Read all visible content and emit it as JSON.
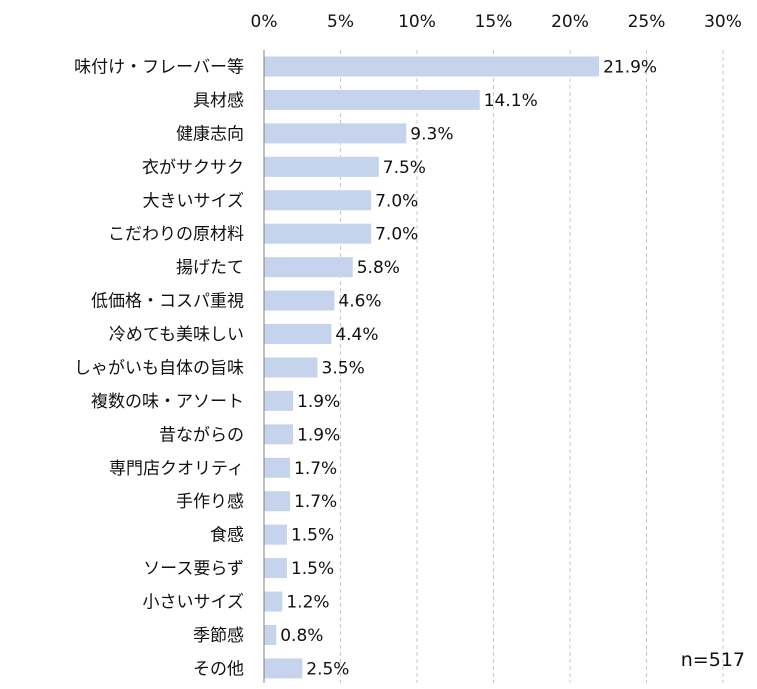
{
  "chart_data": {
    "type": "bar",
    "orientation": "horizontal",
    "categories": [
      "味付け・フレーバー等",
      "具材感",
      "健康志向",
      "衣がサクサク",
      "大きいサイズ",
      "こだわりの原材料",
      "揚げたて",
      "低価格・コスパ重視",
      "冷めても美味しい",
      "しゃがいも自体の旨味",
      "複数の味・アソート",
      "昔ながらの",
      "専門店クオリティ",
      "手作り感",
      "食感",
      "ソース要らず",
      "小さいサイズ",
      "季節感",
      "その他"
    ],
    "values": [
      21.9,
      14.1,
      9.3,
      7.5,
      7.0,
      7.0,
      5.8,
      4.6,
      4.4,
      3.5,
      1.9,
      1.9,
      1.7,
      1.7,
      1.5,
      1.5,
      1.2,
      0.8,
      2.5
    ],
    "value_labels": [
      "21.9%",
      "14.1%",
      "9.3%",
      "7.5%",
      "7.0%",
      "7.0%",
      "5.8%",
      "4.6%",
      "4.4%",
      "3.5%",
      "1.9%",
      "1.9%",
      "1.7%",
      "1.7%",
      "1.5%",
      "1.5%",
      "1.2%",
      "0.8%",
      "2.5%"
    ],
    "x_ticks": [
      "0%",
      "5%",
      "10%",
      "15%",
      "20%",
      "25%",
      "30%"
    ],
    "xlim": [
      0,
      30
    ],
    "xaxis_position": "top",
    "grid": "vertical dashed",
    "title": "",
    "xlabel": "",
    "ylabel": "",
    "annotation": "n=517",
    "bar_color": "#c5d3ec",
    "grid_color": "#c8c8c8",
    "axis_color": "#7f7f7f"
  }
}
